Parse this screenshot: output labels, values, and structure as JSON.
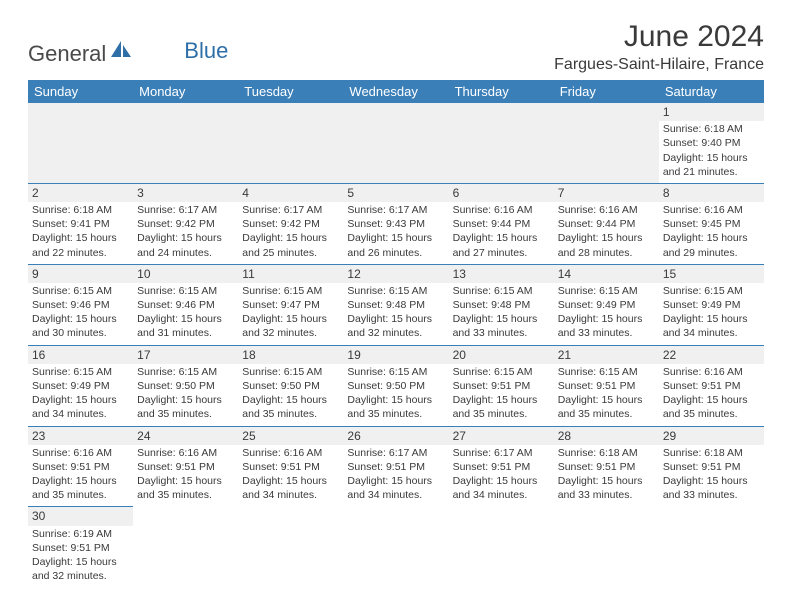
{
  "logo": {
    "part1": "General",
    "part2": "Blue"
  },
  "title": "June 2024",
  "location": "Fargues-Saint-Hilaire, France",
  "colors": {
    "header_bg": "#3b7fb9",
    "header_text": "#ffffff",
    "border": "#3b7fb9",
    "text": "#3a3a3a",
    "shade": "#f0f0f0",
    "logo_blue": "#2f6fa8"
  },
  "day_headers": [
    "Sunday",
    "Monday",
    "Tuesday",
    "Wednesday",
    "Thursday",
    "Friday",
    "Saturday"
  ],
  "weeks": [
    [
      null,
      null,
      null,
      null,
      null,
      null,
      {
        "n": "1",
        "sr": "6:18 AM",
        "ss": "9:40 PM",
        "dl": "15 hours and 21 minutes."
      }
    ],
    [
      {
        "n": "2",
        "sr": "6:18 AM",
        "ss": "9:41 PM",
        "dl": "15 hours and 22 minutes."
      },
      {
        "n": "3",
        "sr": "6:17 AM",
        "ss": "9:42 PM",
        "dl": "15 hours and 24 minutes."
      },
      {
        "n": "4",
        "sr": "6:17 AM",
        "ss": "9:42 PM",
        "dl": "15 hours and 25 minutes."
      },
      {
        "n": "5",
        "sr": "6:17 AM",
        "ss": "9:43 PM",
        "dl": "15 hours and 26 minutes."
      },
      {
        "n": "6",
        "sr": "6:16 AM",
        "ss": "9:44 PM",
        "dl": "15 hours and 27 minutes."
      },
      {
        "n": "7",
        "sr": "6:16 AM",
        "ss": "9:44 PM",
        "dl": "15 hours and 28 minutes."
      },
      {
        "n": "8",
        "sr": "6:16 AM",
        "ss": "9:45 PM",
        "dl": "15 hours and 29 minutes."
      }
    ],
    [
      {
        "n": "9",
        "sr": "6:15 AM",
        "ss": "9:46 PM",
        "dl": "15 hours and 30 minutes."
      },
      {
        "n": "10",
        "sr": "6:15 AM",
        "ss": "9:46 PM",
        "dl": "15 hours and 31 minutes."
      },
      {
        "n": "11",
        "sr": "6:15 AM",
        "ss": "9:47 PM",
        "dl": "15 hours and 32 minutes."
      },
      {
        "n": "12",
        "sr": "6:15 AM",
        "ss": "9:48 PM",
        "dl": "15 hours and 32 minutes."
      },
      {
        "n": "13",
        "sr": "6:15 AM",
        "ss": "9:48 PM",
        "dl": "15 hours and 33 minutes."
      },
      {
        "n": "14",
        "sr": "6:15 AM",
        "ss": "9:49 PM",
        "dl": "15 hours and 33 minutes."
      },
      {
        "n": "15",
        "sr": "6:15 AM",
        "ss": "9:49 PM",
        "dl": "15 hours and 34 minutes."
      }
    ],
    [
      {
        "n": "16",
        "sr": "6:15 AM",
        "ss": "9:49 PM",
        "dl": "15 hours and 34 minutes."
      },
      {
        "n": "17",
        "sr": "6:15 AM",
        "ss": "9:50 PM",
        "dl": "15 hours and 35 minutes."
      },
      {
        "n": "18",
        "sr": "6:15 AM",
        "ss": "9:50 PM",
        "dl": "15 hours and 35 minutes."
      },
      {
        "n": "19",
        "sr": "6:15 AM",
        "ss": "9:50 PM",
        "dl": "15 hours and 35 minutes."
      },
      {
        "n": "20",
        "sr": "6:15 AM",
        "ss": "9:51 PM",
        "dl": "15 hours and 35 minutes."
      },
      {
        "n": "21",
        "sr": "6:15 AM",
        "ss": "9:51 PM",
        "dl": "15 hours and 35 minutes."
      },
      {
        "n": "22",
        "sr": "6:16 AM",
        "ss": "9:51 PM",
        "dl": "15 hours and 35 minutes."
      }
    ],
    [
      {
        "n": "23",
        "sr": "6:16 AM",
        "ss": "9:51 PM",
        "dl": "15 hours and 35 minutes."
      },
      {
        "n": "24",
        "sr": "6:16 AM",
        "ss": "9:51 PM",
        "dl": "15 hours and 35 minutes."
      },
      {
        "n": "25",
        "sr": "6:16 AM",
        "ss": "9:51 PM",
        "dl": "15 hours and 34 minutes."
      },
      {
        "n": "26",
        "sr": "6:17 AM",
        "ss": "9:51 PM",
        "dl": "15 hours and 34 minutes."
      },
      {
        "n": "27",
        "sr": "6:17 AM",
        "ss": "9:51 PM",
        "dl": "15 hours and 34 minutes."
      },
      {
        "n": "28",
        "sr": "6:18 AM",
        "ss": "9:51 PM",
        "dl": "15 hours and 33 minutes."
      },
      {
        "n": "29",
        "sr": "6:18 AM",
        "ss": "9:51 PM",
        "dl": "15 hours and 33 minutes."
      }
    ],
    [
      {
        "n": "30",
        "sr": "6:19 AM",
        "ss": "9:51 PM",
        "dl": "15 hours and 32 minutes."
      },
      null,
      null,
      null,
      null,
      null,
      null
    ]
  ],
  "labels": {
    "sunrise": "Sunrise:",
    "sunset": "Sunset:",
    "daylight": "Daylight:"
  }
}
